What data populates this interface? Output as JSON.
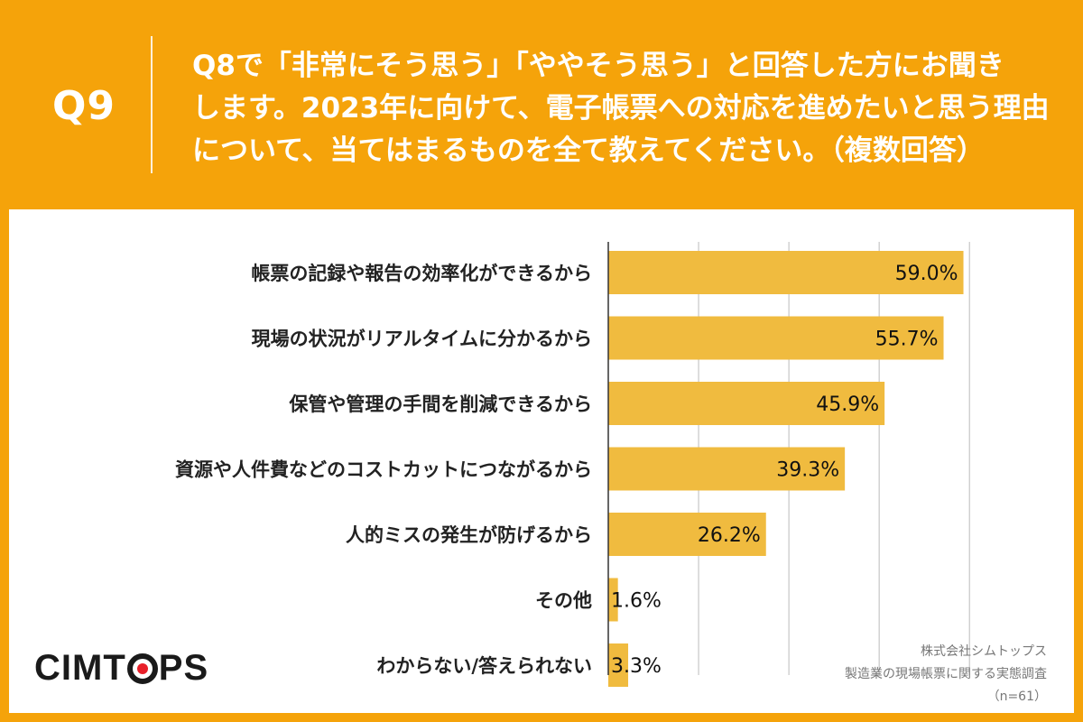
{
  "header": {
    "q_number": "Q9",
    "question_lines": [
      "Q8で「非常にそう思う」「ややそう思う」と回答した方にお聞き",
      "します。2023年に向けて、電子帳票への対応を進めたいと思う理由",
      "について、当てはまるものを全て教えてください。（複数回答）"
    ]
  },
  "colors": {
    "background": "#f5a30a",
    "bar": "#f0bb3f",
    "panel": "#ffffff",
    "grid": "#bbbbbb"
  },
  "chart_data": {
    "type": "bar",
    "orientation": "horizontal",
    "categories": [
      "帳票の記録や報告の効率化ができるから",
      "現場の状況がリアルタイムに分かるから",
      "保管や管理の手間を削減できるから",
      "資源や人件費などのコストカットにつながるから",
      "人的ミスの発生が防げるから",
      "その他",
      "わからない/答えられない"
    ],
    "values": [
      59.0,
      55.7,
      45.9,
      39.3,
      26.2,
      1.6,
      3.3
    ],
    "value_labels": [
      "59.0%",
      "55.7%",
      "45.9%",
      "39.3%",
      "26.2%",
      "1.6%",
      "3.3%"
    ],
    "xlim": [
      0,
      60
    ],
    "grid": true
  },
  "logo": {
    "parts": [
      "CIMT",
      "PS"
    ]
  },
  "source": {
    "company": "株式会社シムトップス",
    "survey": "製造業の現場帳票に関する実態調査",
    "sample": "（n=61）"
  }
}
